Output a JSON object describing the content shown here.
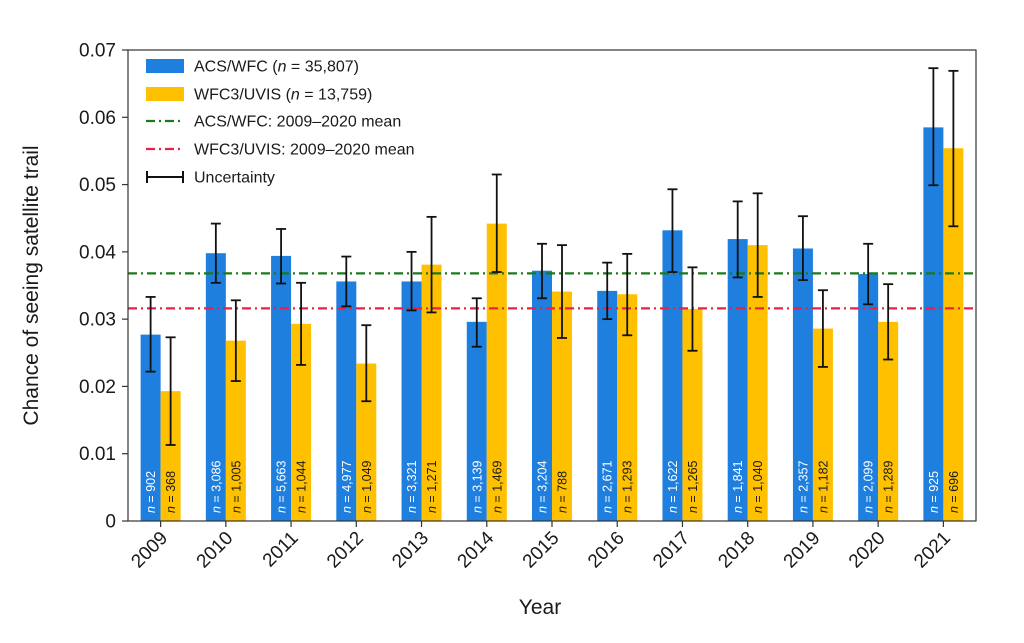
{
  "chart_data": {
    "type": "bar",
    "xlabel": "Year",
    "ylabel": "Chance of seeing satellite trail",
    "ylim": [
      0,
      0.07
    ],
    "yticks": [
      "0",
      "0.01",
      "0.02",
      "0.03",
      "0.04",
      "0.05",
      "0.06",
      "0.07"
    ],
    "categories": [
      "2009",
      "2010",
      "2011",
      "2012",
      "2013",
      "2014",
      "2015",
      "2016",
      "2017",
      "2018",
      "2019",
      "2020",
      "2021"
    ],
    "series": [
      {
        "name": "ACS/WFC",
        "legend_n": "35,807",
        "color": "#1f7fdf",
        "values": [
          0.0277,
          0.0398,
          0.0394,
          0.0356,
          0.0356,
          0.0296,
          0.0372,
          0.0342,
          0.0432,
          0.0419,
          0.0405,
          0.0367,
          0.0585
        ],
        "err_low": [
          0.0222,
          0.0354,
          0.0353,
          0.0319,
          0.0313,
          0.0259,
          0.0331,
          0.03,
          0.037,
          0.0362,
          0.0358,
          0.0322,
          0.0499
        ],
        "err_high": [
          0.0333,
          0.0442,
          0.0434,
          0.0393,
          0.04,
          0.0331,
          0.0412,
          0.0384,
          0.0493,
          0.0475,
          0.0453,
          0.0412,
          0.0673
        ],
        "counts": [
          "902",
          "3,086",
          "5,663",
          "4,977",
          "3,321",
          "3,139",
          "3,204",
          "2,671",
          "1,622",
          "1,841",
          "2,357",
          "2,099",
          "925"
        ]
      },
      {
        "name": "WFC3/UVIS",
        "legend_n": "13,759",
        "color": "#ffc000",
        "values": [
          0.0193,
          0.0268,
          0.0293,
          0.0234,
          0.0381,
          0.0442,
          0.0341,
          0.0337,
          0.0315,
          0.041,
          0.0286,
          0.0296,
          0.0554
        ],
        "err_low": [
          0.0113,
          0.0208,
          0.0232,
          0.0178,
          0.031,
          0.037,
          0.0272,
          0.0276,
          0.0253,
          0.0333,
          0.0229,
          0.024,
          0.0438
        ],
        "err_high": [
          0.0273,
          0.0328,
          0.0354,
          0.0291,
          0.0452,
          0.0515,
          0.041,
          0.0397,
          0.0377,
          0.0487,
          0.0343,
          0.0352,
          0.0669
        ],
        "counts": [
          "368",
          "1,005",
          "1,044",
          "1,049",
          "1,271",
          "1,469",
          "788",
          "1,293",
          "1,265",
          "1,040",
          "1,182",
          "1,289",
          "696"
        ]
      }
    ],
    "reference_lines": [
      {
        "name": "ACS/WFC: 2009–2020 mean",
        "value": 0.0368,
        "color": "#1a7a1a",
        "style": "dash-dot"
      },
      {
        "name": "WFC3/UVIS: 2009–2020 mean",
        "value": 0.0316,
        "color": "#e8204a",
        "style": "dash-dot"
      }
    ],
    "legend": {
      "placement": "top-left",
      "n_symbol": "n",
      "uncertainty_label": "Uncertainty"
    },
    "grid": false
  }
}
